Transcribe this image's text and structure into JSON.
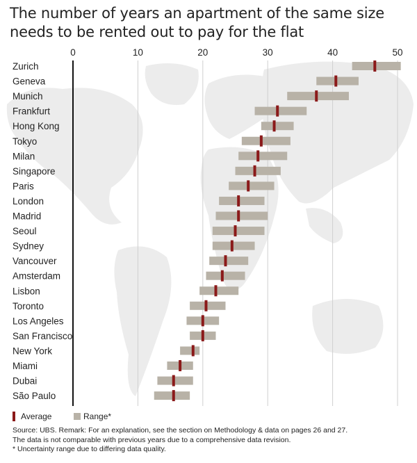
{
  "title": "The number of years an apartment of the same size needs to be rented out to pay for the flat",
  "chart_data": {
    "type": "bar",
    "orientation": "horizontal",
    "title": "The number of years an apartment of the same size needs to be rented out to pay for the flat",
    "xlim": [
      0,
      50
    ],
    "xticks": [
      "0",
      "10",
      "20",
      "30",
      "40",
      "50"
    ],
    "grid": true,
    "legend_position": "bottom-left",
    "categories": [
      "Zurich",
      "Geneva",
      "Munich",
      "Frankfurt",
      "Hong Kong",
      "Tokyo",
      "Milan",
      "Singapore",
      "Paris",
      "London",
      "Madrid",
      "Seoul",
      "Sydney",
      "Vancouver",
      "Amsterdam",
      "Lisbon",
      "Toronto",
      "Los Angeles",
      "San Francisco",
      "New York",
      "Miami",
      "Dubai",
      "São Paulo"
    ],
    "series": [
      {
        "name": "Average",
        "values": [
          46.5,
          40.5,
          37.5,
          31.5,
          31.0,
          29.0,
          28.5,
          28.0,
          27.0,
          25.5,
          25.5,
          25.0,
          24.5,
          23.5,
          23.0,
          22.0,
          20.5,
          20.0,
          20.0,
          18.5,
          16.5,
          15.5,
          15.5
        ]
      },
      {
        "name": "Range*",
        "values": [
          [
            43,
            50.5
          ],
          [
            37.5,
            44
          ],
          [
            33,
            42.5
          ],
          [
            28,
            36
          ],
          [
            29,
            34
          ],
          [
            26,
            33.5
          ],
          [
            25.5,
            33
          ],
          [
            25,
            32
          ],
          [
            24,
            31
          ],
          [
            22.5,
            29.5
          ],
          [
            22,
            30
          ],
          [
            21.5,
            29.5
          ],
          [
            21.5,
            28
          ],
          [
            21,
            27
          ],
          [
            20.5,
            26.5
          ],
          [
            19.5,
            25.5
          ],
          [
            18,
            23.5
          ],
          [
            17.5,
            22.5
          ],
          [
            18,
            22
          ],
          [
            16.5,
            19.5
          ],
          [
            14.5,
            18.5
          ],
          [
            13,
            18.5
          ],
          [
            12.5,
            18
          ]
        ]
      }
    ],
    "colors": {
      "average": "#8b1a1a",
      "range": "#b8b2a7",
      "zero_axis": "#111111",
      "grid": "#cfcfcf",
      "map": "#ececec"
    }
  },
  "legend": {
    "average": "Average",
    "range": "Range*"
  },
  "notes": [
    "Source: UBS. Remark: For an explanation, see the section on Methodology & data on pages 26 and 27.",
    "The data is not comparable with previous years due to a comprehensive data revision.",
    "* Uncertainty range due to differing data quality."
  ]
}
